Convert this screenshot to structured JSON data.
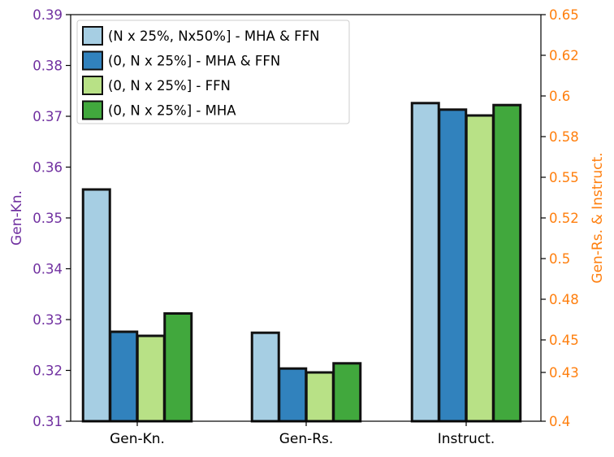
{
  "chart_data": {
    "type": "bar",
    "categories": [
      "Gen-Kn.",
      "Gen-Rs.",
      "Instruct."
    ],
    "series": [
      {
        "name": "(N x 25%, Nx50%] - MHA & FFN",
        "color": "#a6cee3",
        "values": [
          0.3556,
          0.4544,
          0.5956
        ]
      },
      {
        "name": "(0, N x 25%] - MHA & FFN",
        "color": "#3182bd",
        "values": [
          0.3276,
          0.4324,
          0.5916
        ]
      },
      {
        "name": "(0, N x 25%] - FFN",
        "color": "#b8e186",
        "values": [
          0.3268,
          0.43,
          0.588
        ]
      },
      {
        "name": "(0, N x 25%] - MHA",
        "color": "#41a83d",
        "values": [
          0.3312,
          0.4356,
          0.5944
        ]
      }
    ],
    "left_axis": {
      "label": "Gen-Kn.",
      "color": "#7030a0",
      "ylim": [
        0.31,
        0.39
      ],
      "ticks": [
        "0.31",
        "0.32",
        "0.33",
        "0.34",
        "0.35",
        "0.36",
        "0.37",
        "0.38",
        "0.39"
      ],
      "applies_to": [
        "Gen-Kn."
      ]
    },
    "right_axis": {
      "label": "Gen-Rs. & Instruct.",
      "color": "#ff7f0e",
      "ylim": [
        0.4,
        0.65
      ],
      "ticks": [
        {
          "value": 0.4,
          "label": "0.4"
        },
        {
          "value": 0.43,
          "label": "0.43"
        },
        {
          "value": 0.45,
          "label": "0.45"
        },
        {
          "value": 0.475,
          "label": "0.48"
        },
        {
          "value": 0.5,
          "label": "0.5"
        },
        {
          "value": 0.525,
          "label": "0.52"
        },
        {
          "value": 0.55,
          "label": "0.55"
        },
        {
          "value": 0.575,
          "label": "0.58"
        },
        {
          "value": 0.6,
          "label": "0.6"
        },
        {
          "value": 0.625,
          "label": "0.62"
        },
        {
          "value": 0.65,
          "label": "0.65"
        }
      ],
      "applies_to": [
        "Gen-Rs.",
        "Instruct."
      ]
    },
    "legend_position": "top-left",
    "grid": false
  }
}
